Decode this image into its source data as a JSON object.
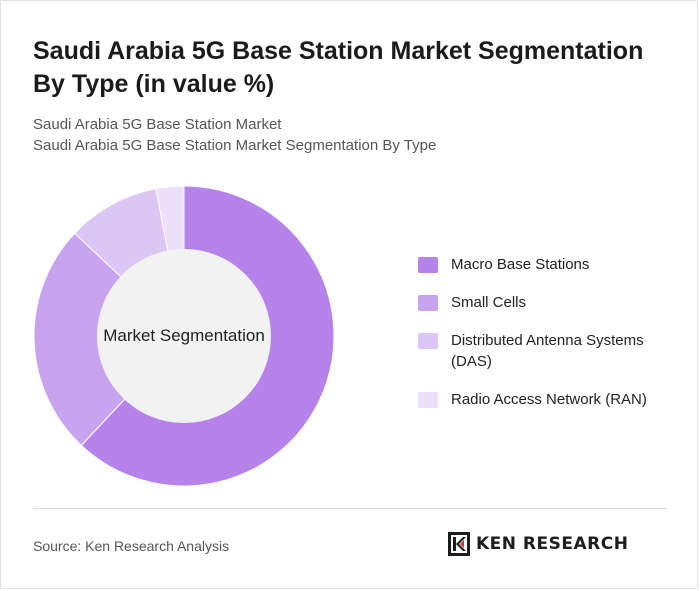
{
  "header": {
    "title": "Saudi Arabia 5G Base Station Market Segmentation By Type (in value %)",
    "subtitle_line1": "Saudi Arabia 5G Base Station Market",
    "subtitle_line2": "Saudi Arabia 5G Base Station Market Segmentation By Type"
  },
  "chart_data": {
    "type": "pie",
    "donut": true,
    "center_label": "Market Segmentation",
    "categories": [
      "Macro Base Stations",
      "Small Cells",
      "Distributed Antenna Systems (DAS)",
      "Radio Access Network (RAN)"
    ],
    "values": [
      62,
      25,
      10,
      3
    ],
    "colors": [
      "#b583ea",
      "#c8a4ef",
      "#dcc6f5",
      "#ece0fa"
    ],
    "legend_position": "right",
    "hole_color": "#f2f2f2"
  },
  "footer": {
    "source": "Source: Ken Research Analysis",
    "logo_text": "KEN RESEARCH"
  }
}
